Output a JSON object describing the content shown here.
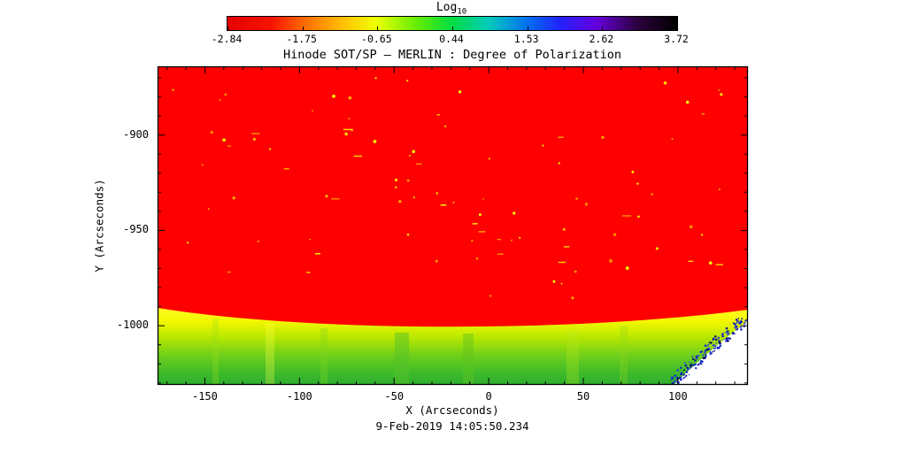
{
  "chart_data": {
    "type": "heatmap",
    "title": "Hinode SOT/SP — MERLIN : Degree of Polarization",
    "xlabel": "X (Arcseconds)",
    "ylabel": "Y (Arcseconds)",
    "timestamp": "9-Feb-2019 14:05:50.234",
    "colorbar": {
      "label_main": "Log",
      "label_sub": "10",
      "scale": "log10",
      "ticks": [
        "-2.84",
        "-1.75",
        "-0.65",
        "0.44",
        "1.53",
        "2.62",
        "3.72"
      ],
      "range": [
        -2.84,
        3.72
      ],
      "stops": [
        {
          "pos": 0.0,
          "color": "#e40000"
        },
        {
          "pos": 0.1,
          "color": "#f71500"
        },
        {
          "pos": 0.17,
          "color": "#ff6a00"
        },
        {
          "pos": 0.27,
          "color": "#ffcc00"
        },
        {
          "pos": 0.33,
          "color": "#eeff00"
        },
        {
          "pos": 0.42,
          "color": "#66ee00"
        },
        {
          "pos": 0.5,
          "color": "#00dd44"
        },
        {
          "pos": 0.58,
          "color": "#00ccbb"
        },
        {
          "pos": 0.66,
          "color": "#0077ee"
        },
        {
          "pos": 0.74,
          "color": "#2222ff"
        },
        {
          "pos": 0.82,
          "color": "#6600dd"
        },
        {
          "pos": 0.91,
          "color": "#2d0040"
        },
        {
          "pos": 1.0,
          "color": "#000000"
        }
      ]
    },
    "x_axis": {
      "lim": [
        -175,
        137
      ],
      "major_ticks": [
        -150,
        -100,
        -50,
        0,
        50,
        100
      ],
      "minor_step": 10
    },
    "y_axis": {
      "lim": [
        -1031,
        -864
      ],
      "major_ticks": [
        -900,
        -950,
        -1000
      ],
      "minor_step": 10
    },
    "regions": [
      {
        "name": "solar-disk",
        "color": "#fe0000",
        "description": "Saturated red on-disk region: degree of polarization at the low end of the log10 scale, with sparse small yellow/orange speckle features"
      },
      {
        "name": "limb-transition",
        "colors": [
          "#ffff22",
          "#2fae2f"
        ],
        "description": "Yellow-to-green gradient band along the solar limb, beginning near Y = -1000 and extending to the bottom of the plot"
      },
      {
        "name": "off-limb-sky",
        "color": "#ffffff",
        "description": "White off-limb region in the lower-right corner bounded by a blue speckled (dithered) arc"
      }
    ]
  }
}
